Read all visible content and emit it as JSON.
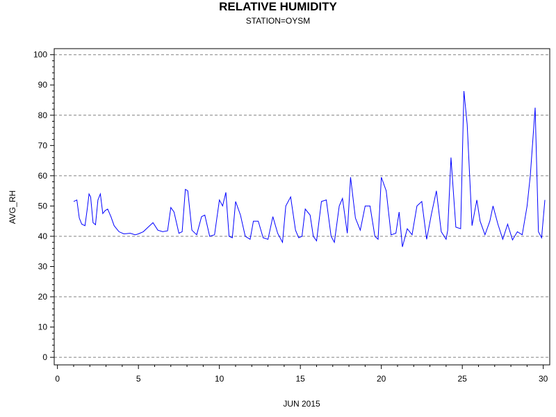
{
  "chart_data": {
    "type": "line",
    "title": "RELATIVE HUMIDITY",
    "subtitle": "STATION=OYSM",
    "xlabel": "JUN 2015",
    "ylabel": "AVG_RH",
    "xlim": [
      -0.2,
      30.4
    ],
    "ylim": [
      -2.5,
      102
    ],
    "xticks": [
      0,
      5,
      10,
      15,
      20,
      25,
      30
    ],
    "yticks": [
      0,
      10,
      20,
      30,
      40,
      50,
      60,
      70,
      80,
      90,
      100
    ],
    "grid": "horizontal dashed at 0, 20, 40, 60, 80, 100",
    "series": [
      {
        "color": "#0000ff",
        "x": [
          1.0,
          1.2,
          1.35,
          1.5,
          1.7,
          1.85,
          1.95,
          2.05,
          2.2,
          2.35,
          2.5,
          2.65,
          2.8,
          2.95,
          3.1,
          3.3,
          3.5,
          3.8,
          4.1,
          4.5,
          4.8,
          5.0,
          5.3,
          5.6,
          5.9,
          6.2,
          6.5,
          6.8,
          7.0,
          7.2,
          7.5,
          7.7,
          7.9,
          8.05,
          8.3,
          8.6,
          8.9,
          9.1,
          9.4,
          9.7,
          10.0,
          10.2,
          10.4,
          10.6,
          10.8,
          11.0,
          11.3,
          11.6,
          11.9,
          12.1,
          12.4,
          12.7,
          13.0,
          13.3,
          13.6,
          13.9,
          14.1,
          14.4,
          14.7,
          14.9,
          15.1,
          15.3,
          15.6,
          15.8,
          16.0,
          16.3,
          16.6,
          16.9,
          17.1,
          17.4,
          17.6,
          17.9,
          18.1,
          18.4,
          18.7,
          19.0,
          19.3,
          19.6,
          19.8,
          20.0,
          20.3,
          20.6,
          20.9,
          21.1,
          21.3,
          21.6,
          21.9,
          22.2,
          22.5,
          22.8,
          23.1,
          23.4,
          23.7,
          24.0,
          24.1,
          24.3,
          24.6,
          24.9,
          25.1,
          25.3,
          25.6,
          25.9,
          26.1,
          26.4,
          26.7,
          26.9,
          27.2,
          27.5,
          27.8,
          28.1,
          28.4,
          28.7,
          29.0,
          29.2,
          29.5,
          29.7,
          29.9,
          30.1
        ],
        "values": [
          51.5,
          52.0,
          46.0,
          44.0,
          43.5,
          49.5,
          54.0,
          53.0,
          44.5,
          43.8,
          52.0,
          54.0,
          47.5,
          48.5,
          49.0,
          46.5,
          43.5,
          41.5,
          40.8,
          41.0,
          40.5,
          40.8,
          41.5,
          43.0,
          44.5,
          42.0,
          41.5,
          41.8,
          49.5,
          48.0,
          41.0,
          41.5,
          55.5,
          55.0,
          42.0,
          40.5,
          46.5,
          47.0,
          40.0,
          40.5,
          52.0,
          50.0,
          54.5,
          40.0,
          39.5,
          51.5,
          47.0,
          40.0,
          39.0,
          45.0,
          45.0,
          39.5,
          39.0,
          46.5,
          41.0,
          38.0,
          50.0,
          53.0,
          42.0,
          39.5,
          40.0,
          49.0,
          47.0,
          40.0,
          38.5,
          51.5,
          52.0,
          40.0,
          38.0,
          50.0,
          52.5,
          41.0,
          59.5,
          46.0,
          42.0,
          50.0,
          50.0,
          40.0,
          39.0,
          59.5,
          55.0,
          40.5,
          41.0,
          48.0,
          36.5,
          42.5,
          40.5,
          50.0,
          51.5,
          39.0,
          47.5,
          55.0,
          41.5,
          39.0,
          42.0,
          66.0,
          43.0,
          42.5,
          88.0,
          77.0,
          43.5,
          52.0,
          45.0,
          40.5,
          45.0,
          50.0,
          44.0,
          39.0,
          44.0,
          38.8,
          41.5,
          40.5,
          50.0,
          60.0,
          82.5,
          41.5,
          39.5,
          52.0
        ]
      }
    ]
  }
}
